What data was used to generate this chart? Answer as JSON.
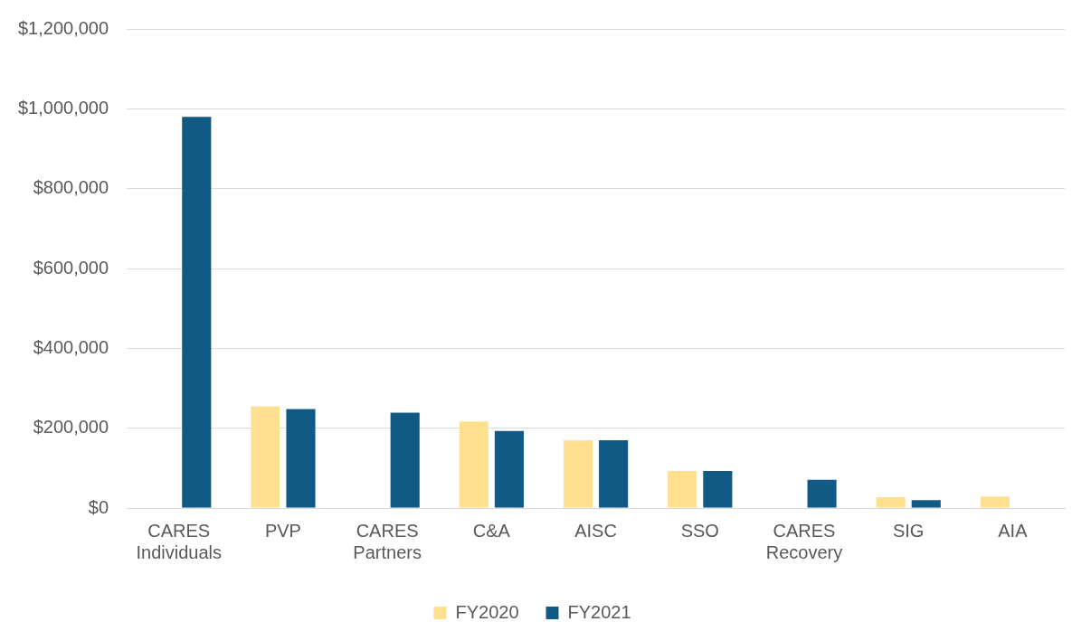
{
  "chart_data": {
    "type": "bar",
    "categories": [
      "CARES Individuals",
      "PVP",
      "CARES Partners",
      "C&A",
      "AISC",
      "SSO",
      "CARES Recovery",
      "SIG",
      "AIA"
    ],
    "series": [
      {
        "name": "FY2020",
        "color": "#ffe08f",
        "values": [
          0,
          255000,
          0,
          217000,
          170000,
          93000,
          0,
          27000,
          29000
        ]
      },
      {
        "name": "FY2021",
        "color": "#125a86",
        "values": [
          980000,
          248000,
          239000,
          193000,
          170000,
          93000,
          71000,
          20000,
          null
        ]
      }
    ],
    "ylim": [
      0,
      1200000
    ],
    "yticks": [
      {
        "value": 0,
        "label": "$0"
      },
      {
        "value": 200000,
        "label": "$200,000"
      },
      {
        "value": 400000,
        "label": "$400,000"
      },
      {
        "value": 600000,
        "label": "$600,000"
      },
      {
        "value": 800000,
        "label": "$800,000"
      },
      {
        "value": 1000000,
        "label": "$1,000,000"
      },
      {
        "value": 1200000,
        "label": "$1,200,000"
      }
    ],
    "grid": "y",
    "legend": "bottom"
  }
}
